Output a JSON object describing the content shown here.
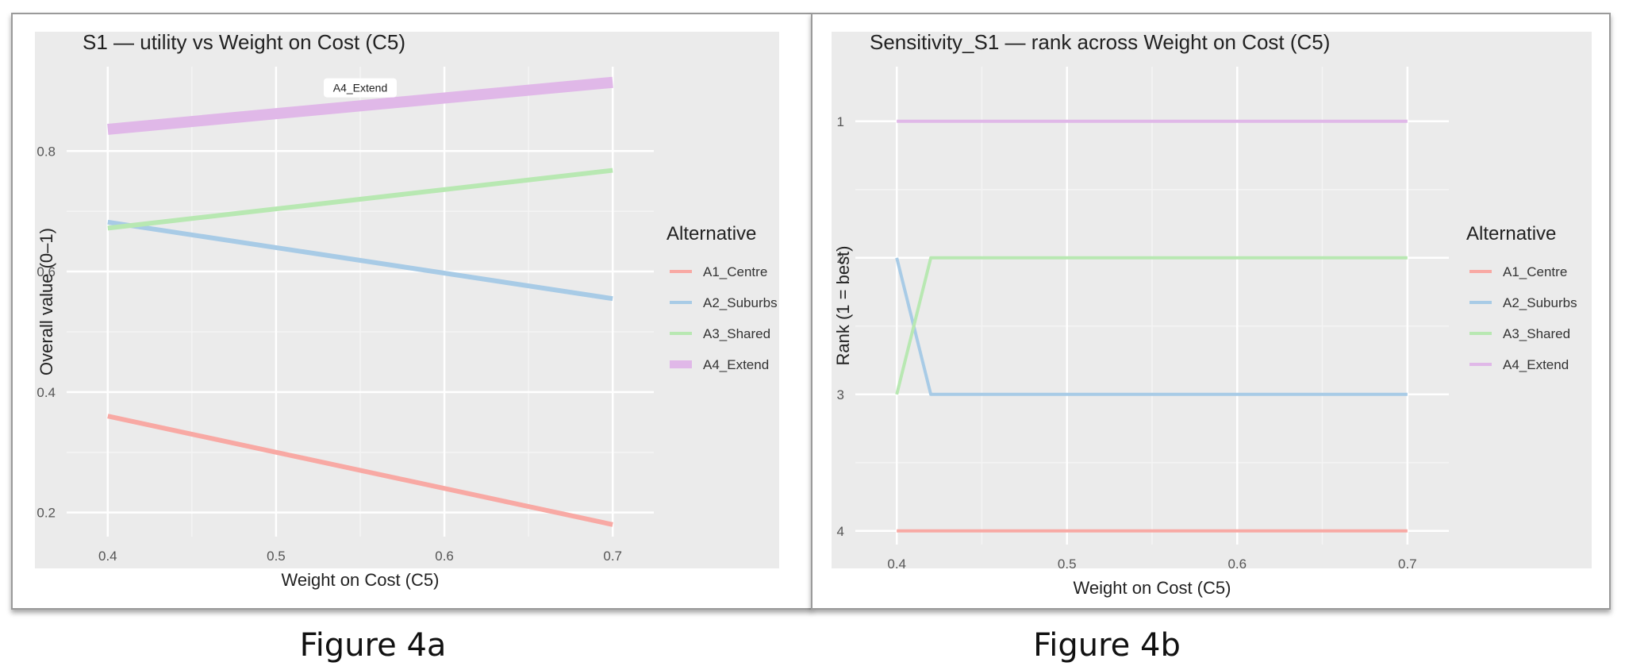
{
  "figure_captions": [
    "Figure 4a",
    "Figure 4b"
  ],
  "legend_title": "Alternative",
  "chart_data": [
    {
      "type": "line",
      "title": "S1 — utility vs Weight on Cost (C5)",
      "xlabel": "Weight on Cost (C5)",
      "ylabel": "Overall value (0–1)",
      "xlim": [
        0.385,
        0.715
      ],
      "ylim": [
        0.16,
        0.94
      ],
      "x_ticks": [
        0.4,
        0.5,
        0.6,
        0.7
      ],
      "y_ticks": [
        0.2,
        0.4,
        0.6,
        0.8
      ],
      "grid": true,
      "legend_placement": "right",
      "annotation": {
        "text": "A4_Extend",
        "x": 0.55,
        "y": 0.905
      },
      "series": [
        {
          "name": "A1_Centre",
          "color": "#f8a9a4",
          "x": [
            0.4,
            0.7
          ],
          "y": [
            0.36,
            0.18
          ]
        },
        {
          "name": "A2_Suburbs",
          "color": "#a8cbe6",
          "x": [
            0.4,
            0.7
          ],
          "y": [
            0.682,
            0.555
          ]
        },
        {
          "name": "A3_Shared",
          "color": "#b8e8b2",
          "x": [
            0.4,
            0.7
          ],
          "y": [
            0.672,
            0.768
          ]
        },
        {
          "name": "A4_Extend",
          "color": "#e0b8e8",
          "x": [
            0.4,
            0.7
          ],
          "y": [
            0.836,
            0.914
          ]
        }
      ]
    },
    {
      "type": "line",
      "title": "Sensitivity_S1 — rank across Weight on Cost (C5)",
      "xlabel": "Weight on Cost (C5)",
      "ylabel": "Rank (1 = best)",
      "xlim": [
        0.385,
        0.715
      ],
      "ylim": [
        4.1,
        0.6
      ],
      "y_reversed": true,
      "x_ticks": [
        0.4,
        0.5,
        0.6,
        0.7
      ],
      "y_ticks": [
        1,
        2,
        3,
        4
      ],
      "grid": true,
      "legend_placement": "right",
      "series": [
        {
          "name": "A1_Centre",
          "color": "#f8a9a4",
          "x": [
            0.4,
            0.7
          ],
          "y": [
            4,
            4
          ]
        },
        {
          "name": "A2_Suburbs",
          "color": "#a8cbe6",
          "x": [
            0.4,
            0.42,
            0.7
          ],
          "y": [
            2,
            3,
            3
          ]
        },
        {
          "name": "A3_Shared",
          "color": "#b8e8b2",
          "x": [
            0.4,
            0.42,
            0.7
          ],
          "y": [
            3,
            2,
            2
          ]
        },
        {
          "name": "A4_Extend",
          "color": "#e0b8e8",
          "x": [
            0.4,
            0.7
          ],
          "y": [
            1,
            1
          ]
        }
      ]
    }
  ]
}
